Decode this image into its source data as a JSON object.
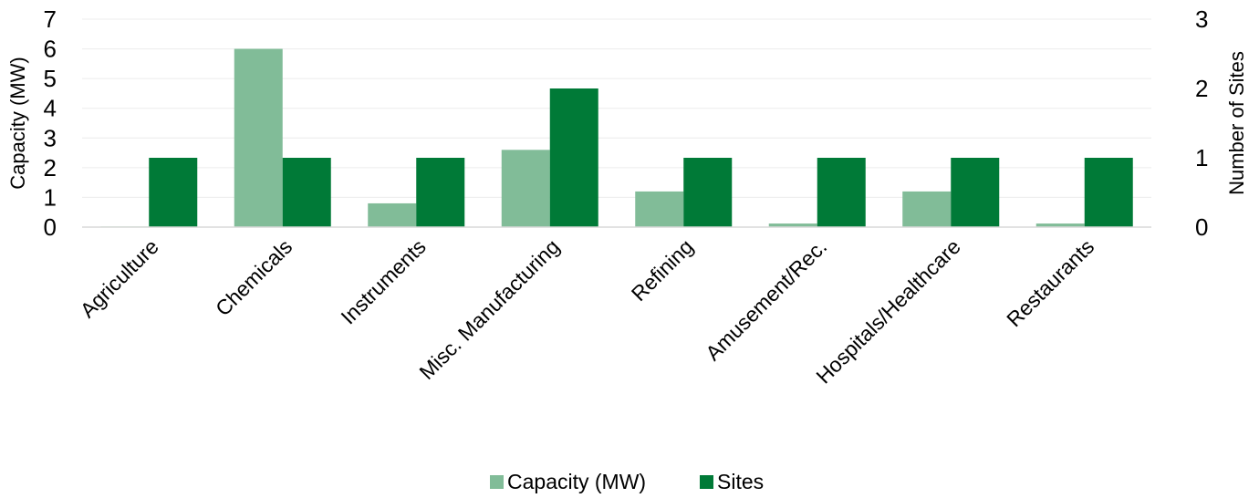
{
  "chart_data": {
    "type": "bar",
    "categories": [
      "Agriculture",
      "Chemicals",
      "Instruments",
      "Misc. Manufacturing",
      "Refining",
      "Amusement/Rec.",
      "Hospitals/Healthcare",
      "Restaurants"
    ],
    "series": [
      {
        "name": "Capacity (MW)",
        "axis": "left",
        "color": "#81BC98",
        "values": [
          0.02,
          6.0,
          0.8,
          2.6,
          1.2,
          0.12,
          1.2,
          0.12
        ]
      },
      {
        "name": "Sites",
        "axis": "right",
        "color": "#007A37",
        "values": [
          1,
          1,
          1,
          2,
          1,
          1,
          1,
          1
        ]
      }
    ],
    "ylabel": "Capacity (MW)",
    "ylabel_right": "Number of Sites",
    "ylim": [
      0,
      7
    ],
    "ylim_right": [
      0,
      3
    ],
    "yticks": [
      "0",
      "1",
      "2",
      "3",
      "4",
      "5",
      "6",
      "7"
    ],
    "yticks_right": [
      "0",
      "1",
      "2",
      "3"
    ],
    "grid": true,
    "legend_position": "bottom"
  }
}
